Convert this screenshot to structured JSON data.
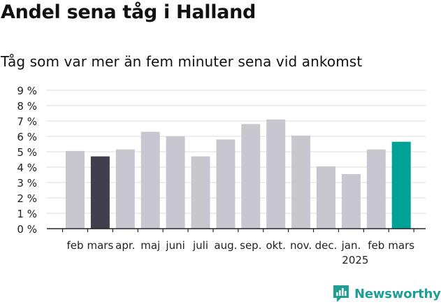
{
  "title": "Andel sena tåg i Halland",
  "subtitle": "Tåg som var mer än fem minuter sena vid ankomst",
  "brand": "Newsworthy",
  "colors": {
    "bar_default": "#c8c7d0",
    "bar_highlight_prev": "#413f4d",
    "bar_highlight_current": "#00a297",
    "grid": "#dcdcdc",
    "axis": "#222222",
    "brand": "#1f9e96"
  },
  "chart_data": {
    "type": "bar",
    "categories": [
      "feb",
      "mars",
      "apr.",
      "maj",
      "juni",
      "juli",
      "aug.",
      "sep.",
      "okt.",
      "nov.",
      "dec.",
      "jan.",
      "feb",
      "mars"
    ],
    "year_label": "2025",
    "values": [
      5.05,
      4.7,
      5.15,
      6.3,
      6.0,
      4.7,
      5.8,
      6.8,
      7.1,
      6.05,
      4.05,
      3.55,
      5.15,
      5.65
    ],
    "highlight": {
      "1": "bar_highlight_prev",
      "13": "bar_highlight_current"
    },
    "y_ticks": [
      "0 %",
      "1 %",
      "2 %",
      "3 %",
      "4 %",
      "5 %",
      "6 %",
      "7 %",
      "8 %",
      "9 %"
    ],
    "ylim": [
      0,
      9
    ],
    "grid": true,
    "xlabel": "",
    "ylabel": ""
  }
}
